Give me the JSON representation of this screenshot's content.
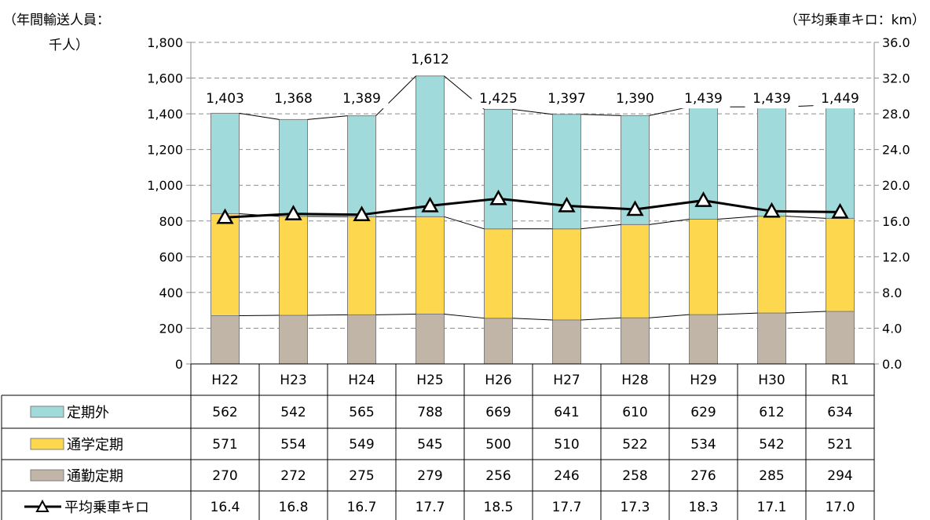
{
  "chart_data": {
    "type": "bar",
    "stacked": true,
    "left_axis_label_line1": "（年間輸送人員：",
    "left_axis_label_line2": "千人）",
    "right_axis_label": "（平均乗車キロ：km）",
    "categories": [
      "H22",
      "H23",
      "H24",
      "H25",
      "H26",
      "H27",
      "H28",
      "H29",
      "H30",
      "R1"
    ],
    "series": [
      {
        "name": "通勤定期",
        "values": [
          270,
          272,
          275,
          279,
          256,
          246,
          258,
          276,
          285,
          294
        ],
        "color": "#c0b5a6"
      },
      {
        "name": "通学定期",
        "values": [
          571,
          554,
          549,
          545,
          500,
          510,
          522,
          534,
          542,
          521
        ],
        "color": "#fdd84f"
      },
      {
        "name": "定期外",
        "values": [
          562,
          542,
          565,
          788,
          669,
          641,
          610,
          629,
          612,
          634
        ],
        "color": "#a0dadb"
      }
    ],
    "totals": [
      "1,403",
      "1,368",
      "1,389",
      "1,612",
      "1,425",
      "1,397",
      "1,390",
      "1,439",
      "1,439",
      "1,449"
    ],
    "line_series": {
      "name": "平均乗車キロ",
      "values": [
        16.4,
        16.8,
        16.7,
        17.7,
        18.5,
        17.7,
        17.3,
        18.3,
        17.1,
        17.0
      ]
    },
    "y_left": {
      "min": 0,
      "max": 1800,
      "ticks": [
        "0",
        "200",
        "400",
        "600",
        "800",
        "1,000",
        "1,200",
        "1,400",
        "1,600",
        "1,800"
      ]
    },
    "y_right": {
      "min": 0,
      "max": 36,
      "ticks": [
        "0.0",
        "4.0",
        "8.0",
        "12.0",
        "16.0",
        "20.0",
        "24.0",
        "28.0",
        "32.0",
        "36.0"
      ]
    },
    "table_rows": [
      {
        "label": "定期外",
        "values": [
          "562",
          "542",
          "565",
          "788",
          "669",
          "641",
          "610",
          "629",
          "612",
          "634"
        ]
      },
      {
        "label": "通学定期",
        "values": [
          "571",
          "554",
          "549",
          "545",
          "500",
          "510",
          "522",
          "534",
          "542",
          "521"
        ]
      },
      {
        "label": "通勤定期",
        "values": [
          "270",
          "272",
          "275",
          "279",
          "256",
          "246",
          "258",
          "276",
          "285",
          "294"
        ]
      },
      {
        "label": "平均乗車キロ",
        "values": [
          "16.4",
          "16.8",
          "16.7",
          "17.7",
          "18.5",
          "17.7",
          "17.3",
          "18.3",
          "17.1",
          "17.0"
        ]
      }
    ],
    "gridlines": "dashed"
  }
}
